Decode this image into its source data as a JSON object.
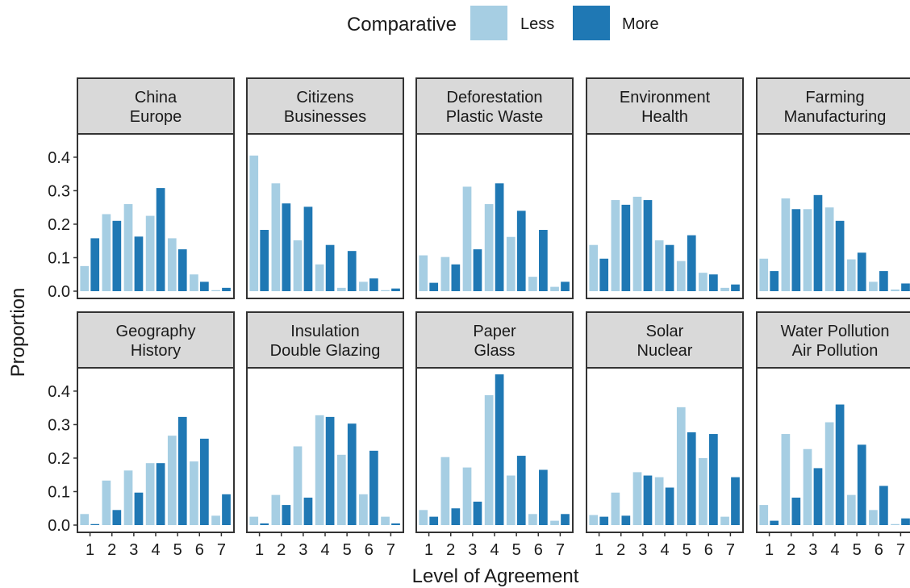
{
  "chart_data": {
    "type": "bar",
    "layout": "faceted-grid",
    "xlabel": "Level of Agreement",
    "ylabel": "Proportion",
    "categories": [
      "1",
      "2",
      "3",
      "4",
      "5",
      "6",
      "7"
    ],
    "ylim": [
      0,
      0.46
    ],
    "yticks": [
      "0.0",
      "0.1",
      "0.2",
      "0.3",
      "0.4"
    ],
    "legend": {
      "title": "Comparative",
      "placement": "top",
      "entries": [
        {
          "label": "Less",
          "color": "#a6cee3"
        },
        {
          "label": "More",
          "color": "#1f78b4"
        }
      ]
    },
    "facets": [
      {
        "label_line1": "China",
        "label_line2": "Europe",
        "less": [
          0.075,
          0.23,
          0.26,
          0.225,
          0.158,
          0.05,
          0.003
        ],
        "more": [
          0.158,
          0.21,
          0.163,
          0.308,
          0.125,
          0.028,
          0.01
        ]
      },
      {
        "label_line1": "Citizens",
        "label_line2": "Businesses",
        "less": [
          0.405,
          0.322,
          0.152,
          0.08,
          0.01,
          0.028,
          0.003
        ],
        "more": [
          0.183,
          0.262,
          0.252,
          0.138,
          0.12,
          0.038,
          0.008
        ]
      },
      {
        "label_line1": "Deforestation",
        "label_line2": "Plastic Waste",
        "less": [
          0.107,
          0.102,
          0.312,
          0.26,
          0.162,
          0.043,
          0.013
        ],
        "more": [
          0.025,
          0.08,
          0.125,
          0.322,
          0.24,
          0.183,
          0.028
        ]
      },
      {
        "label_line1": "Environment",
        "label_line2": "Health",
        "less": [
          0.138,
          0.272,
          0.282,
          0.152,
          0.09,
          0.055,
          0.01
        ],
        "more": [
          0.097,
          0.258,
          0.272,
          0.138,
          0.167,
          0.05,
          0.02
        ]
      },
      {
        "label_line1": "Farming",
        "label_line2": "Manufacturing",
        "less": [
          0.097,
          0.277,
          0.245,
          0.25,
          0.095,
          0.028,
          0.005
        ],
        "more": [
          0.06,
          0.245,
          0.287,
          0.21,
          0.115,
          0.06,
          0.023
        ]
      },
      {
        "label_line1": "Geography",
        "label_line2": "History",
        "less": [
          0.033,
          0.133,
          0.163,
          0.185,
          0.267,
          0.19,
          0.028
        ],
        "more": [
          0.003,
          0.045,
          0.097,
          0.185,
          0.323,
          0.258,
          0.092
        ]
      },
      {
        "label_line1": "Insulation",
        "label_line2": "Double Glazing",
        "less": [
          0.025,
          0.09,
          0.235,
          0.328,
          0.21,
          0.092,
          0.025
        ],
        "more": [
          0.005,
          0.06,
          0.082,
          0.323,
          0.303,
          0.222,
          0.005
        ]
      },
      {
        "label_line1": "Paper",
        "label_line2": "Glass",
        "less": [
          0.045,
          0.203,
          0.172,
          0.388,
          0.148,
          0.033,
          0.013
        ],
        "more": [
          0.025,
          0.05,
          0.07,
          0.45,
          0.207,
          0.165,
          0.033
        ]
      },
      {
        "label_line1": "Solar",
        "label_line2": "Nuclear",
        "less": [
          0.03,
          0.097,
          0.158,
          0.143,
          0.352,
          0.2,
          0.025
        ],
        "more": [
          0.025,
          0.028,
          0.148,
          0.112,
          0.277,
          0.272,
          0.143
        ]
      },
      {
        "label_line1": "Water Pollution",
        "label_line2": "Air Pollution",
        "less": [
          0.06,
          0.272,
          0.227,
          0.307,
          0.09,
          0.045,
          0.003
        ],
        "more": [
          0.013,
          0.082,
          0.17,
          0.36,
          0.24,
          0.117,
          0.02
        ]
      }
    ]
  }
}
